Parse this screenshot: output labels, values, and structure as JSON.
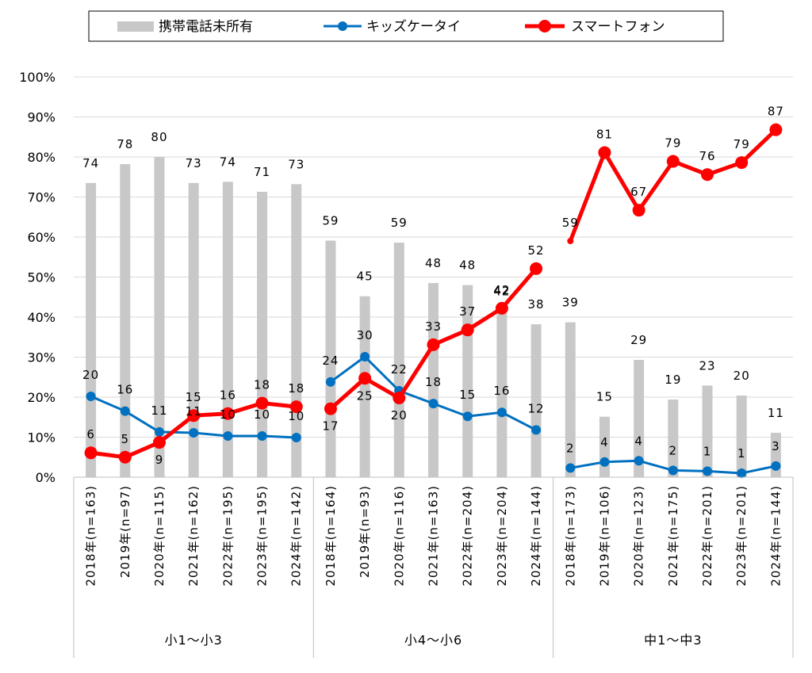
{
  "chart_data": {
    "type": "bar+line",
    "ylim": [
      0,
      100
    ],
    "yticks": [
      "0%",
      "10%",
      "20%",
      "30%",
      "40%",
      "50%",
      "60%",
      "70%",
      "80%",
      "90%",
      "100%"
    ],
    "legend": [
      "携帯電話未所有",
      "キッズケータイ",
      "スマートフォン"
    ],
    "colors": {
      "none": "#c8c8c8",
      "kids": "#0070c0",
      "smart": "#ff0000"
    },
    "groups": [
      {
        "name": "小1〜小3",
        "categories": [
          "2018年(n=163)",
          "2019年(n=97)",
          "2020年(n=115)",
          "2021年(n=162)",
          "2022年(n=195)",
          "2023年(n=195)",
          "2024年(n=142)"
        ],
        "none": [
          73.5,
          78.2,
          80,
          73.5,
          73.8,
          71.3,
          73.2
        ],
        "kids": [
          20.2,
          16.5,
          11.3,
          11.1,
          10.3,
          10.3,
          9.9
        ],
        "smart": [
          6.1,
          5.0,
          8.7,
          15.4,
          15.9,
          18.5,
          17.6
        ],
        "none_labels": [
          "74",
          "78",
          "80",
          "73",
          "74",
          "71",
          "73"
        ],
        "kids_labels": [
          "20",
          "16",
          "11",
          "11",
          "10",
          "10",
          "10"
        ],
        "smart_labels": [
          "6",
          "5",
          "9",
          "15",
          "16",
          "18",
          "18"
        ]
      },
      {
        "name": "小4〜小6",
        "categories": [
          "2018年(n=164)",
          "2019年(n=93)",
          "2020年(n=116)",
          "2021年(n=163)",
          "2022年(n=204)",
          "2023年(n=204)",
          "2024年(n=144)"
        ],
        "none": [
          59.1,
          45.2,
          58.6,
          48.5,
          48.0,
          41.5,
          38.2
        ],
        "kids": [
          23.8,
          30.1,
          21.6,
          18.4,
          15.2,
          16.2,
          11.8
        ],
        "smart": [
          17.1,
          24.7,
          19.8,
          33.1,
          36.8,
          42.2,
          52.1
        ],
        "none_labels": [
          "59",
          "45",
          "59",
          "48",
          "48",
          "42",
          "38"
        ],
        "kids_labels": [
          "24",
          "30",
          "22",
          "18",
          "15",
          "16",
          "12"
        ],
        "smart_labels": [
          "17",
          "25",
          "20",
          "33",
          "37",
          "42",
          "52"
        ]
      },
      {
        "name": "中1〜中3",
        "categories": [
          "2018年(n=173)",
          "2019年(n=106)",
          "2020年(n=123)",
          "2021年(n=175)",
          "2022年(n=201)",
          "2023年(n=201)",
          "2024年(n=144)"
        ],
        "none": [
          38.7,
          15.1,
          29.3,
          19.4,
          22.9,
          20.4,
          11.1
        ],
        "kids": [
          2.3,
          3.8,
          4.1,
          1.7,
          1.5,
          1.0,
          2.8
        ],
        "smart": [
          59.0,
          81.1,
          66.7,
          78.9,
          75.6,
          78.6,
          86.8
        ],
        "none_labels": [
          "39",
          "15",
          "29",
          "19",
          "23",
          "20",
          "11"
        ],
        "kids_labels": [
          "2",
          "4",
          "4",
          "2",
          "1",
          "1",
          "3"
        ],
        "smart_labels": [
          "59",
          "81",
          "67",
          "79",
          "76",
          "79",
          "87"
        ]
      }
    ]
  }
}
